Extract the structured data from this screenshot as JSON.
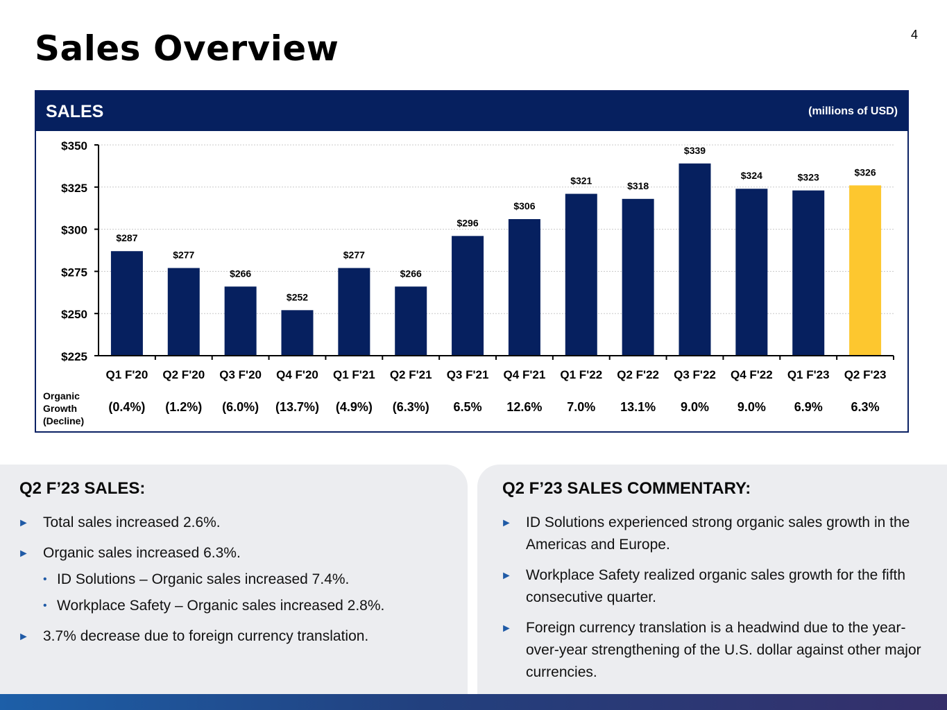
{
  "page": {
    "title": "Sales Overview",
    "number": "4"
  },
  "panel": {
    "title": "SALES",
    "units": "(millions of USD)"
  },
  "chart_data": {
    "type": "bar",
    "title": "SALES",
    "units": "(millions of USD)",
    "categories": [
      "Q1 F'20",
      "Q2 F'20",
      "Q3 F'20",
      "Q4 F'20",
      "Q1 F'21",
      "Q2 F'21",
      "Q3 F'21",
      "Q4 F'21",
      "Q1 F'22",
      "Q2 F'22",
      "Q3 F'22",
      "Q4 F'22",
      "Q1 F'23",
      "Q2 F'23"
    ],
    "values": [
      287,
      277,
      266,
      252,
      277,
      266,
      296,
      306,
      321,
      318,
      339,
      324,
      323,
      326
    ],
    "data_labels": [
      "$287",
      "$277",
      "$266",
      "$252",
      "$277",
      "$266",
      "$296",
      "$306",
      "$321",
      "$318",
      "$339",
      "$324",
      "$323",
      "$326"
    ],
    "highlight_index": 13,
    "ylim": [
      225,
      350
    ],
    "yticks": [
      225,
      250,
      275,
      300,
      325,
      350
    ],
    "ytick_labels": [
      "$225",
      "$250",
      "$275",
      "$300",
      "$325",
      "$350"
    ],
    "grid": true,
    "colors": {
      "bar": "#06205f",
      "highlight": "#fdc72f",
      "grid": "#c8c8c8"
    },
    "growth_label_lines": [
      "Organic",
      "Growth",
      "(Decline)"
    ],
    "growth": [
      "(0.4%)",
      "(1.2%)",
      "(6.0%)",
      "(13.7%)",
      "(4.9%)",
      "(6.3%)",
      "6.5%",
      "12.6%",
      "7.0%",
      "13.1%",
      "9.0%",
      "9.0%",
      "6.9%",
      "6.3%"
    ]
  },
  "left_box": {
    "heading": "Q2 F’23 SALES:",
    "items": [
      {
        "type": "main",
        "text": "Total sales increased 2.6%."
      },
      {
        "type": "main",
        "text": "Organic sales increased 6.3%."
      },
      {
        "type": "sub",
        "text": "ID Solutions – Organic sales increased 7.4%."
      },
      {
        "type": "sub",
        "text": "Workplace Safety – Organic sales increased 2.8%."
      },
      {
        "type": "main",
        "text": "3.7% decrease due to foreign currency translation."
      }
    ]
  },
  "right_box": {
    "heading": "Q2 F’23 SALES COMMENTARY:",
    "items": [
      {
        "type": "main",
        "text": "ID Solutions experienced strong organic sales growth in the Americas and Europe."
      },
      {
        "type": "main",
        "text": "Workplace Safety realized organic sales growth for the fifth consecutive quarter."
      },
      {
        "type": "main",
        "text": "Foreign currency translation is a headwind due to the year-over-year strengthening of the U.S. dollar against other major currencies."
      }
    ]
  },
  "glyphs": {
    "triangle": "►",
    "dot": "•"
  }
}
